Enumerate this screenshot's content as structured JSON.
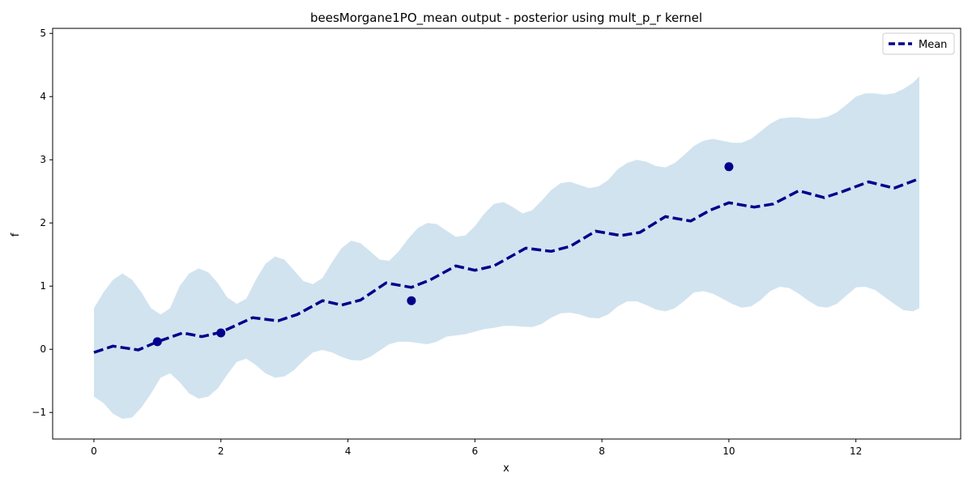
{
  "chart_data": {
    "type": "line",
    "title": "beesMorgane1PO_mean output - posterior using mult_p_r kernel",
    "xlabel": "x",
    "ylabel": "f",
    "xlim": [
      -0.65,
      13.65
    ],
    "ylim": [
      -1.42,
      5.08
    ],
    "xticks": [
      0,
      2,
      4,
      6,
      8,
      10,
      12
    ],
    "yticks": [
      -1,
      0,
      1,
      2,
      3,
      4,
      5
    ],
    "xtick_labels": [
      "0",
      "2",
      "4",
      "6",
      "8",
      "10",
      "12"
    ],
    "ytick_labels": [
      "−1",
      "0",
      "1",
      "2",
      "3",
      "4",
      "5"
    ],
    "legend": {
      "placement": "top-right",
      "entries": [
        "Mean"
      ]
    },
    "grid": false,
    "colors": {
      "mean": "#00008b",
      "band": "#d1e3ef",
      "points": "#00008b"
    },
    "series": [
      {
        "name": "Mean",
        "style": "dashed",
        "x": [
          0,
          0.3,
          0.5,
          0.7,
          1.0,
          1.4,
          1.7,
          2.0,
          2.5,
          2.9,
          3.2,
          3.6,
          3.9,
          4.2,
          4.6,
          5.0,
          5.3,
          5.7,
          6.0,
          6.3,
          6.8,
          7.2,
          7.5,
          7.9,
          8.3,
          8.6,
          9.0,
          9.4,
          9.7,
          10.0,
          10.4,
          10.7,
          11.1,
          11.5,
          11.8,
          12.2,
          12.6,
          13.0
        ],
        "values": [
          -0.05,
          0.05,
          0.02,
          -0.01,
          0.12,
          0.26,
          0.2,
          0.27,
          0.5,
          0.45,
          0.55,
          0.77,
          0.7,
          0.78,
          1.05,
          0.98,
          1.1,
          1.32,
          1.25,
          1.32,
          1.6,
          1.55,
          1.63,
          1.87,
          1.8,
          1.85,
          2.1,
          2.03,
          2.2,
          2.32,
          2.25,
          2.3,
          2.51,
          2.4,
          2.5,
          2.65,
          2.55,
          2.7
        ]
      }
    ],
    "confidence_band": {
      "x": [
        0,
        0.15,
        0.3,
        0.45,
        0.6,
        0.75,
        0.9,
        1.05,
        1.2,
        1.35,
        1.5,
        1.65,
        1.8,
        1.95,
        2.1,
        2.25,
        2.4,
        2.55,
        2.7,
        2.85,
        3.0,
        3.15,
        3.3,
        3.45,
        3.6,
        3.75,
        3.9,
        4.05,
        4.2,
        4.35,
        4.5,
        4.65,
        4.8,
        4.95,
        5.1,
        5.25,
        5.4,
        5.55,
        5.7,
        5.85,
        6.0,
        6.15,
        6.3,
        6.45,
        6.6,
        6.75,
        6.9,
        7.05,
        7.2,
        7.35,
        7.5,
        7.65,
        7.8,
        7.95,
        8.1,
        8.25,
        8.4,
        8.55,
        8.7,
        8.85,
        9.0,
        9.15,
        9.3,
        9.45,
        9.6,
        9.75,
        9.9,
        10.05,
        10.2,
        10.35,
        10.5,
        10.65,
        10.8,
        10.95,
        11.1,
        11.25,
        11.4,
        11.55,
        11.7,
        11.85,
        12.0,
        12.15,
        12.3,
        12.45,
        12.6,
        12.75,
        12.9,
        13.0
      ],
      "upper": [
        0.65,
        0.9,
        1.1,
        1.2,
        1.1,
        0.9,
        0.65,
        0.55,
        0.65,
        1.0,
        1.2,
        1.28,
        1.22,
        1.05,
        0.82,
        0.72,
        0.8,
        1.1,
        1.35,
        1.47,
        1.42,
        1.25,
        1.08,
        1.03,
        1.13,
        1.38,
        1.6,
        1.72,
        1.68,
        1.55,
        1.42,
        1.4,
        1.55,
        1.75,
        1.92,
        2.0,
        1.98,
        1.88,
        1.78,
        1.8,
        1.95,
        2.15,
        2.3,
        2.33,
        2.25,
        2.15,
        2.2,
        2.35,
        2.52,
        2.63,
        2.65,
        2.6,
        2.55,
        2.58,
        2.68,
        2.85,
        2.95,
        3.0,
        2.97,
        2.9,
        2.88,
        2.95,
        3.08,
        3.22,
        3.3,
        3.33,
        3.3,
        3.27,
        3.27,
        3.33,
        3.45,
        3.57,
        3.65,
        3.67,
        3.67,
        3.65,
        3.65,
        3.68,
        3.75,
        3.87,
        4.0,
        4.05,
        4.05,
        4.03,
        4.05,
        4.12,
        4.22,
        4.32
      ],
      "lower": [
        -0.75,
        -0.85,
        -1.02,
        -1.1,
        -1.08,
        -0.92,
        -0.7,
        -0.45,
        -0.38,
        -0.52,
        -0.7,
        -0.78,
        -0.75,
        -0.62,
        -0.4,
        -0.2,
        -0.15,
        -0.25,
        -0.38,
        -0.45,
        -0.43,
        -0.33,
        -0.18,
        -0.05,
        -0.01,
        -0.05,
        -0.12,
        -0.17,
        -0.18,
        -0.12,
        -0.02,
        0.08,
        0.12,
        0.12,
        0.1,
        0.08,
        0.12,
        0.2,
        0.22,
        0.24,
        0.28,
        0.32,
        0.34,
        0.37,
        0.37,
        0.36,
        0.35,
        0.4,
        0.5,
        0.57,
        0.58,
        0.55,
        0.5,
        0.49,
        0.55,
        0.68,
        0.76,
        0.76,
        0.7,
        0.63,
        0.6,
        0.65,
        0.77,
        0.9,
        0.92,
        0.88,
        0.8,
        0.72,
        0.66,
        0.68,
        0.78,
        0.92,
        0.99,
        0.97,
        0.88,
        0.77,
        0.68,
        0.66,
        0.72,
        0.85,
        0.98,
        0.99,
        0.94,
        0.83,
        0.72,
        0.62,
        0.6,
        0.65
      ]
    },
    "observations": [
      {
        "x": 1,
        "y": 0.12
      },
      {
        "x": 2,
        "y": 0.26
      },
      {
        "x": 5,
        "y": 0.77
      },
      {
        "x": 10,
        "y": 2.89
      }
    ]
  }
}
